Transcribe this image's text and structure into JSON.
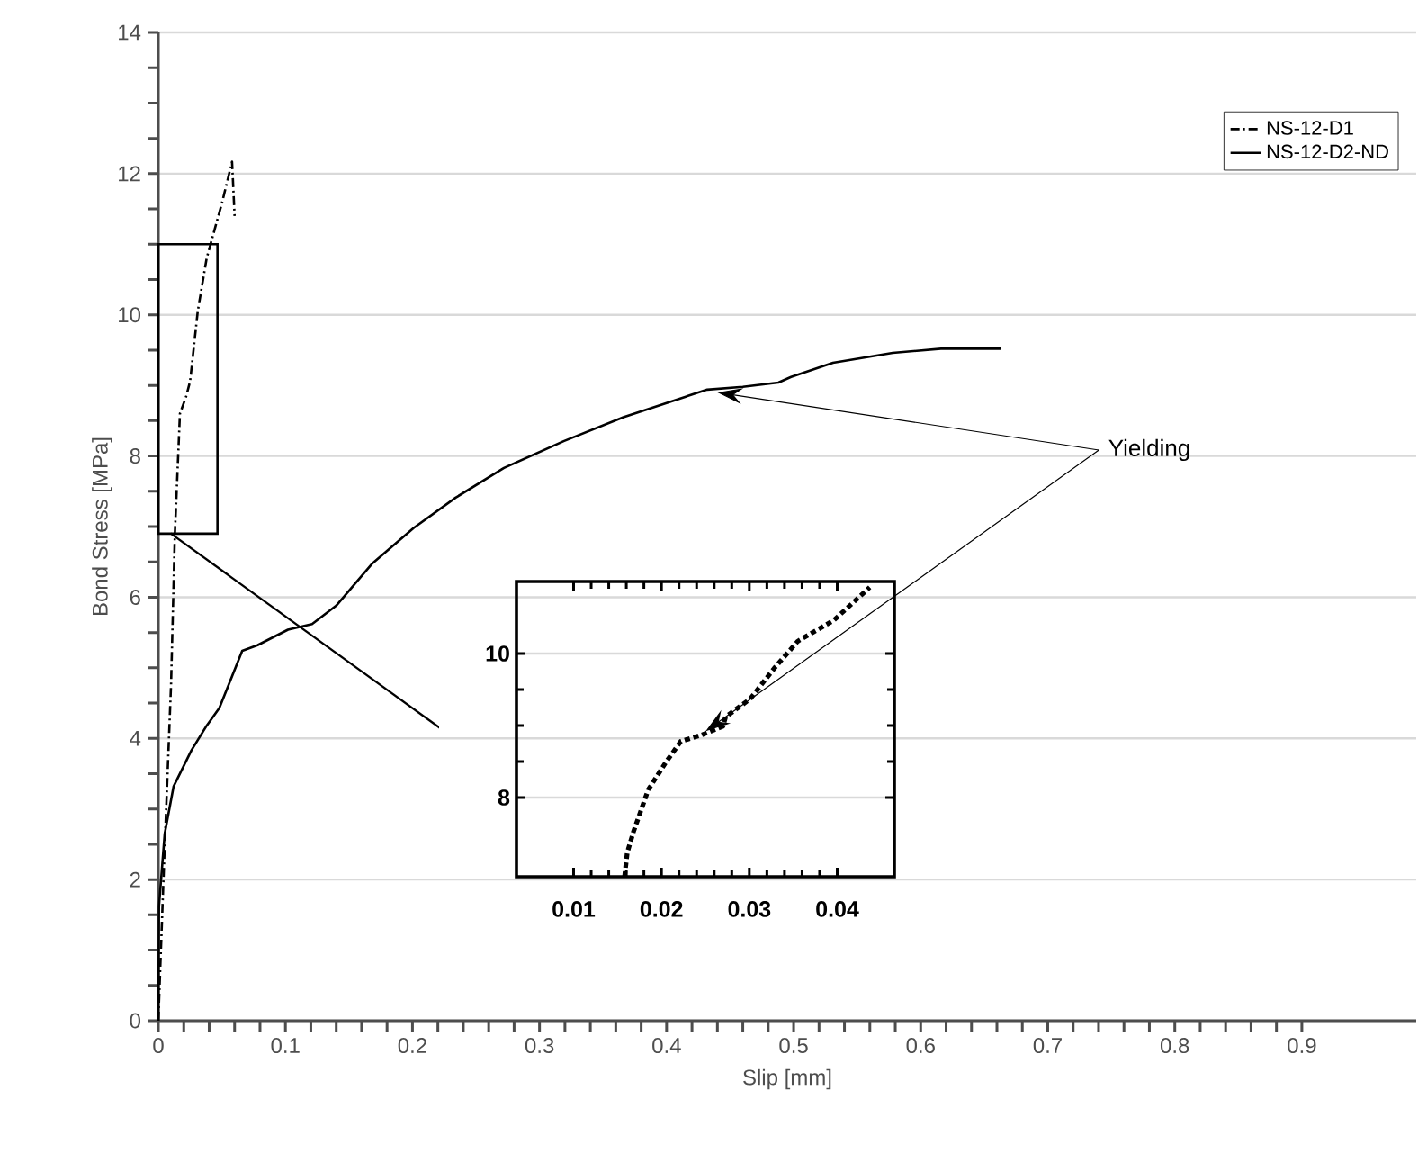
{
  "chart_data": [
    {
      "type": "line",
      "xlabel": "Slip [mm]",
      "ylabel": "Bond Stress [MPa]",
      "xlim": [
        0,
        0.99
      ],
      "xticks": [
        0,
        0.1,
        0.2,
        0.3,
        0.4,
        0.5,
        0.6,
        0.7,
        0.8,
        0.9
      ],
      "ylim": [
        0,
        14
      ],
      "yticks": [
        0,
        2,
        4,
        6,
        8,
        10,
        12,
        14
      ],
      "grid": "y",
      "legend": "top right",
      "annotations": [
        {
          "text": "Yielding",
          "x": 0.44,
          "y": 8.9
        }
      ],
      "series": [
        {
          "name": "NS-12-D1",
          "color": "#000000",
          "line_style": "dashdot",
          "x": [
            0,
            0.005,
            0.01,
            0.013,
            0.017,
            0.022,
            0.025,
            0.031,
            0.038,
            0.05,
            0.058,
            0.06
          ],
          "values": [
            0,
            2.47,
            4.77,
            6.9,
            8.6,
            8.85,
            9.06,
            10.05,
            10.8,
            11.58,
            12.17,
            11.4
          ]
        },
        {
          "name": "NS-12-D2-ND",
          "color": "#000000",
          "line_style": "solid",
          "x": [
            0,
            0.0005,
            0.005,
            0.012,
            0.026,
            0.038,
            0.048,
            0.066,
            0.078,
            0.102,
            0.121,
            0.14,
            0.168,
            0.201,
            0.234,
            0.272,
            0.319,
            0.366,
            0.432,
            0.46,
            0.488,
            0.498,
            0.531,
            0.578,
            0.616,
            0.663
          ],
          "values": [
            0,
            1.62,
            2.65,
            3.32,
            3.83,
            4.18,
            4.43,
            5.24,
            5.32,
            5.54,
            5.62,
            5.88,
            6.47,
            6.98,
            7.41,
            7.83,
            8.21,
            8.55,
            8.94,
            8.98,
            9.04,
            9.12,
            9.32,
            9.46,
            9.52,
            9.52
          ]
        }
      ]
    },
    {
      "type": "line",
      "xlim": [
        0.0035,
        0.0465
      ],
      "xticks": [
        0.01,
        0.02,
        0.03,
        0.04
      ],
      "ylim": [
        6.9,
        11
      ],
      "yticks": [
        8,
        10
      ],
      "grid": "y",
      "series": [
        {
          "color": "#000000",
          "line_style": "dotted",
          "x": [
            0.0158,
            0.0161,
            0.0168,
            0.0185,
            0.0205,
            0.0222,
            0.0246,
            0.027,
            0.0273,
            0.0301,
            0.0328,
            0.0355,
            0.0396,
            0.0437
          ],
          "values": [
            6.9,
            7.23,
            7.52,
            8.11,
            8.49,
            8.78,
            8.87,
            8.99,
            9.12,
            9.37,
            9.79,
            10.17,
            10.46,
            10.92
          ]
        }
      ]
    }
  ]
}
